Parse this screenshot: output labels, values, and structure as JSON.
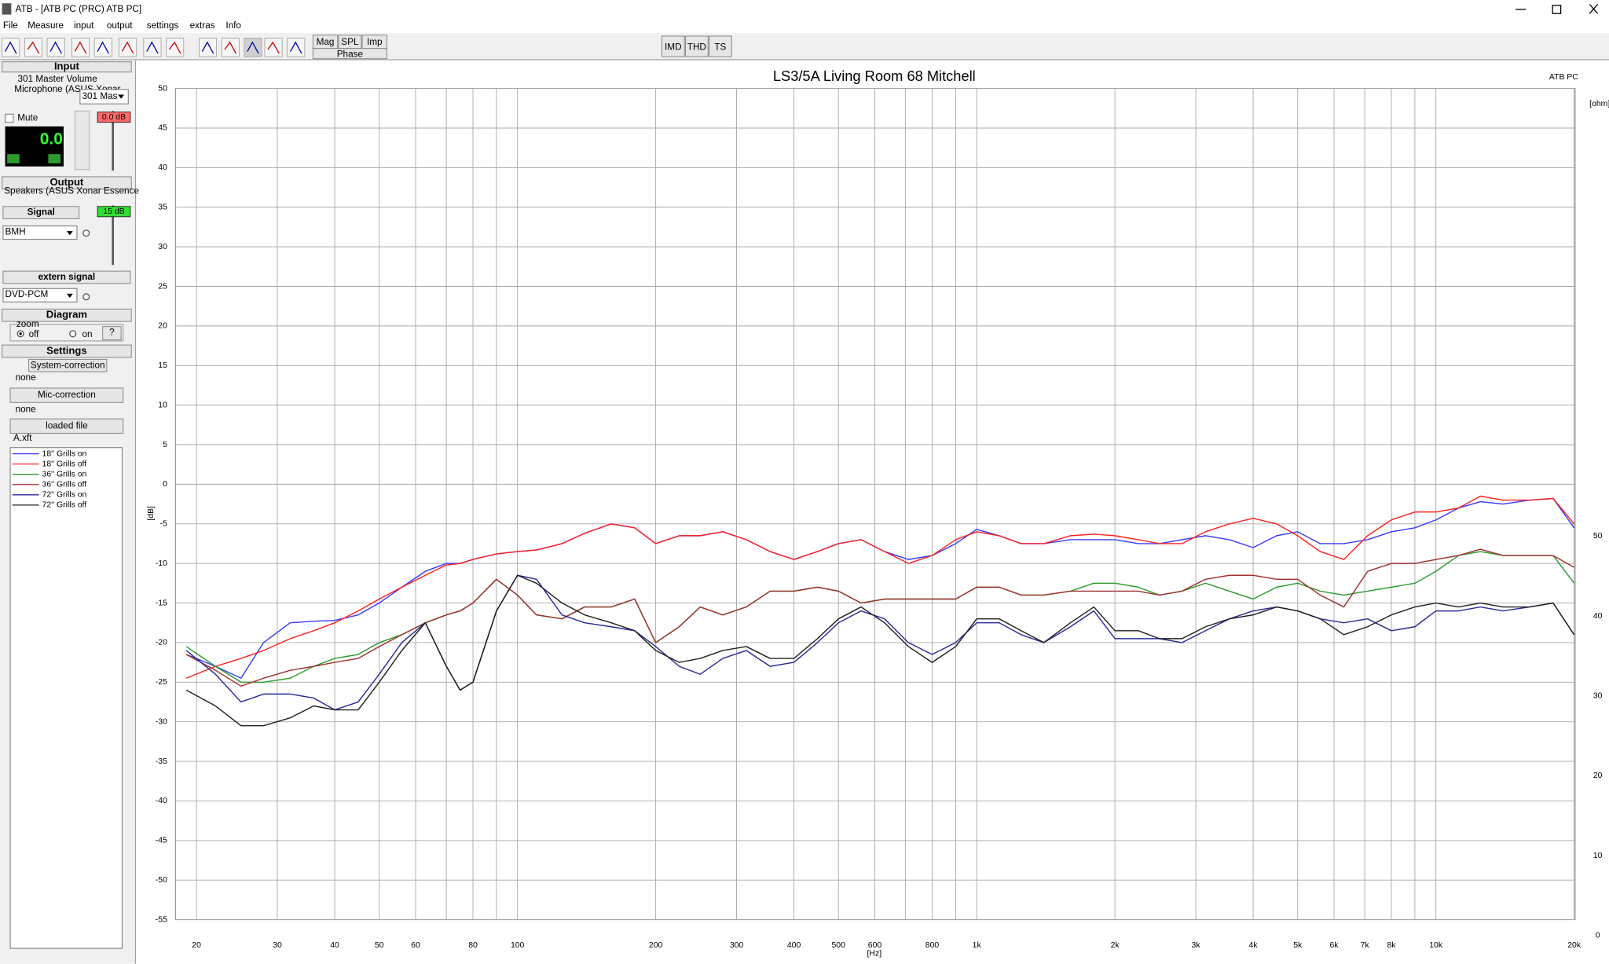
{
  "window": {
    "title": "ATB - [ATB PC (PRC)  ATB PC]"
  },
  "menu": [
    "File",
    "Measure",
    "input",
    "output",
    "settings",
    "extras",
    "Info"
  ],
  "toolbar": {
    "modes": [
      "Mag",
      "SPL",
      "Imp"
    ],
    "phase": "Phase",
    "tests": [
      "IMD",
      "THD",
      "TS"
    ]
  },
  "sidebar": {
    "input": {
      "header": "Input",
      "device": "301 Master Volume",
      "source": "Microphone (ASUS Xonar",
      "select": "301 Mas",
      "mute": "Mute",
      "level": "0.0 dB",
      "display": "0.0"
    },
    "output": {
      "header": "Output",
      "device": "Speakers (ASUS Xonar Essence",
      "signal": "Signal",
      "signal_select": "BMH",
      "level": "15 dB"
    },
    "extern": {
      "header": "extern signal",
      "select": "DVD-PCM"
    },
    "diagram": {
      "header": "Diagram",
      "zoom": "zoom",
      "off": "off",
      "on": "on",
      "help": "?"
    },
    "settings": {
      "header": "Settings",
      "system_correction": "System-correction",
      "system_value": "none",
      "mic_correction": "Mic-correction",
      "mic_value": "none",
      "loaded_file": "loaded file",
      "file_value": "A.xft"
    }
  },
  "chart_data": {
    "type": "line",
    "title": "LS3/5A Living Room 68 Mitchell",
    "subtitle": "ATB PC",
    "x_label": "[Hz]",
    "y_label": "[dB]",
    "y2_label": "[ohm]",
    "xscale": "log",
    "xlim": [
      18,
      20100
    ],
    "xticks": [
      20,
      30,
      40,
      50,
      60,
      80,
      100,
      200,
      300,
      400,
      500,
      600,
      800,
      {
        "value": 1000,
        "label": "1k"
      },
      {
        "value": 2000,
        "label": "2k"
      },
      {
        "value": 3000,
        "label": "3k"
      },
      {
        "value": 4000,
        "label": "4k"
      },
      {
        "value": 5000,
        "label": "5k"
      },
      {
        "value": 6000,
        "label": "6k"
      },
      {
        "value": 7000,
        "label": "7k"
      },
      {
        "value": 8000,
        "label": "8k"
      },
      {
        "value": 10000,
        "label": "10k"
      },
      {
        "value": 20000,
        "label": "20k"
      }
    ],
    "xminorticks": [
      70,
      90,
      700,
      900,
      9000
    ],
    "ylim": [
      -55,
      50
    ],
    "yticks": [
      -55,
      -50,
      -45,
      -40,
      -35,
      -30,
      -25,
      -20,
      -15,
      -10,
      -5,
      0,
      5,
      10,
      15,
      20,
      25,
      30,
      35,
      40,
      45,
      50
    ],
    "y2lim": [
      2,
      106
    ],
    "y2ticks": [
      0,
      10,
      20,
      30,
      40,
      50
    ],
    "grid": true,
    "legend": "sidebar",
    "x": [
      19,
      22,
      25,
      28,
      32,
      36,
      40,
      45,
      50,
      56,
      63,
      70,
      75,
      80,
      90,
      100,
      110,
      125,
      140,
      160,
      180,
      200,
      225,
      250,
      280,
      315,
      355,
      400,
      450,
      500,
      560,
      630,
      710,
      800,
      900,
      1000,
      1120,
      1250,
      1400,
      1600,
      1800,
      2000,
      2250,
      2500,
      2800,
      3150,
      3550,
      4000,
      4500,
      5000,
      5600,
      6300,
      7100,
      8000,
      9000,
      10000,
      11200,
      12500,
      14000,
      16000,
      18000,
      20000
    ],
    "series": [
      {
        "name": "18'' Grills on",
        "color": "#3a3aff",
        "values": [
          -21.5,
          -23,
          -24.5,
          -20,
          -17.5,
          -17.3,
          -17.2,
          -16.5,
          -15,
          -13,
          -11,
          -10,
          -10,
          -9.5,
          -8.8,
          -8.5,
          -8.3,
          -7.5,
          -6.2,
          -5,
          -5.5,
          -7.5,
          -6.5,
          -6.5,
          -6,
          -7,
          -8.5,
          -9.5,
          -8.5,
          -7.5,
          -7,
          -8.5,
          -9.5,
          -9,
          -7.5,
          -5.7,
          -6.5,
          -7.5,
          -7.5,
          -7,
          -7,
          -7,
          -7.5,
          -7.5,
          -7,
          -6.5,
          -7,
          -8,
          -6.5,
          -6,
          -7.5,
          -7.5,
          -7,
          -6,
          -5.5,
          -4.5,
          -3,
          -2.2,
          -2.5,
          -2,
          -1.8,
          -5.5
        ]
      },
      {
        "name": "18'' Grills off",
        "color": "#ff2020",
        "values": [
          -24.5,
          -23,
          -22,
          -21,
          -19.5,
          -18.5,
          -17.5,
          -16,
          -14.5,
          -13,
          -11.5,
          -10.2,
          -10,
          -9.5,
          -8.8,
          -8.5,
          -8.3,
          -7.5,
          -6.2,
          -5,
          -5.5,
          -7.5,
          -6.5,
          -6.5,
          -6,
          -7,
          -8.5,
          -9.5,
          -8.5,
          -7.5,
          -7,
          -8.5,
          -10,
          -9,
          -7,
          -6,
          -6.5,
          -7.5,
          -7.5,
          -6.5,
          -6.3,
          -6.5,
          -7,
          -7.5,
          -7.5,
          -6,
          -5,
          -4.3,
          -5,
          -6.5,
          -8.5,
          -9.5,
          -6.5,
          -4.5,
          -3.5,
          -3.5,
          -3,
          -1.5,
          -2,
          -2,
          -1.8,
          -5
        ]
      },
      {
        "name": "36'' Grills on",
        "color": "#2e9a2e",
        "values": [
          -20.5,
          -23,
          -25,
          -25,
          -24.5,
          -23,
          -22,
          -21.5,
          -20,
          -19,
          -17.5,
          -16.5,
          -16,
          -15,
          -12,
          -14,
          -16.5,
          -17,
          -15.5,
          -15.5,
          -14.5,
          -20,
          -18,
          -15.5,
          -16.5,
          -15.5,
          -13.5,
          -13.5,
          -13,
          -13.5,
          -15,
          -14.5,
          -14.5,
          -14.5,
          -14.5,
          -13,
          -13,
          -14,
          -14,
          -13.5,
          -12.5,
          -12.5,
          -13,
          -14,
          -13.5,
          -12.5,
          -13.5,
          -14.5,
          -13,
          -12.5,
          -13.5,
          -14,
          -13.5,
          -13,
          -12.5,
          -11,
          -9,
          -8.5,
          -9,
          -9,
          -9,
          -12.5
        ]
      },
      {
        "name": "36'' Grills off",
        "color": "#a03030",
        "values": [
          -21.5,
          -23.5,
          -25.5,
          -24.5,
          -23.5,
          -23,
          -22.5,
          -22,
          -20.5,
          -19,
          -17.5,
          -16.5,
          -16,
          -15,
          -12,
          -14,
          -16.5,
          -17,
          -15.5,
          -15.5,
          -14.5,
          -20,
          -18,
          -15.5,
          -16.5,
          -15.5,
          -13.5,
          -13.5,
          -13,
          -13.5,
          -15,
          -14.5,
          -14.5,
          -14.5,
          -14.5,
          -13,
          -13,
          -14,
          -14,
          -13.5,
          -13.5,
          -13.5,
          -13.5,
          -14,
          -13.5,
          -12,
          -11.5,
          -11.5,
          -12,
          -12,
          -14,
          -15.5,
          -11,
          -10,
          -10,
          -9.5,
          -9,
          -8.2,
          -9,
          -9,
          -9,
          -10.5
        ]
      },
      {
        "name": "72'' Grills on",
        "color": "#2a2a9a",
        "values": [
          -21,
          -24,
          -27.5,
          -26.5,
          -26.5,
          -27,
          -28.5,
          -27.5,
          -24,
          -20,
          -17.5,
          -23,
          -26,
          -25,
          -16,
          -11.5,
          -12,
          -16.5,
          -17.5,
          -18,
          -18.5,
          -20.5,
          -23,
          -24,
          -22,
          -21,
          -23,
          -22.5,
          -20,
          -17.5,
          -16,
          -17,
          -20,
          -21.5,
          -20,
          -17.5,
          -17.5,
          -19,
          -20,
          -18,
          -16,
          -19.5,
          -19.5,
          -19.5,
          -20,
          -18.5,
          -17,
          -16,
          -15.5,
          -16,
          -17,
          -17.5,
          -17,
          -18.5,
          -18,
          -16,
          -16,
          -15.5,
          -16,
          -15.5,
          -15,
          -19
        ]
      },
      {
        "name": "72'' Grills off",
        "color": "#202020",
        "values": [
          -26,
          -28,
          -30.5,
          -30.5,
          -29.5,
          -28,
          -28.5,
          -28.5,
          -25,
          -21,
          -17.5,
          -23,
          -26,
          -25,
          -16,
          -11.5,
          -12.5,
          -15,
          -16.5,
          -17.5,
          -18.5,
          -21,
          -22.5,
          -22,
          -21,
          -20.5,
          -22,
          -22,
          -19.5,
          -17,
          -15.5,
          -17.5,
          -20.5,
          -22.5,
          -20.5,
          -17,
          -17,
          -18.5,
          -20,
          -17.5,
          -15.5,
          -18.5,
          -18.5,
          -19.5,
          -19.5,
          -18,
          -17,
          -16.5,
          -15.5,
          -16,
          -17,
          -19,
          -18,
          -16.5,
          -15.5,
          -15,
          -15.5,
          -15,
          -15.5,
          -15.5,
          -15,
          -19
        ]
      }
    ]
  }
}
